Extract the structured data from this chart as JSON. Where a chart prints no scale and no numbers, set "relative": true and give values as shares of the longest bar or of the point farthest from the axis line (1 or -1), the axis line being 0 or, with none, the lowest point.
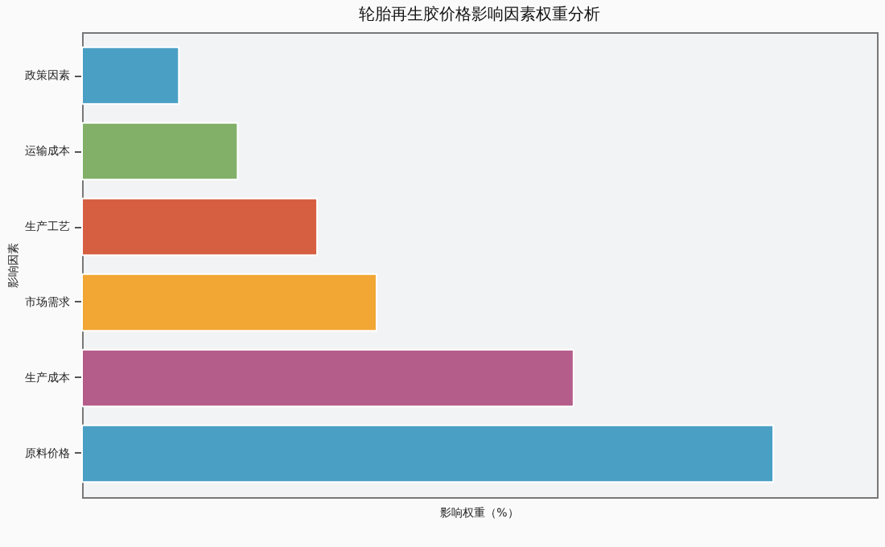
{
  "chart_data": {
    "type": "bar",
    "orientation": "horizontal",
    "relative": true,
    "title": "轮胎再生胶价格影响因素权重分析",
    "xlabel": "影响权重（%）",
    "ylabel": "影响因素",
    "categories": [
      "政策因素",
      "运输成本",
      "生产工艺",
      "市场需求",
      "生产成本",
      "原料价格"
    ],
    "values": [
      0.14,
      0.225,
      0.34,
      0.426,
      0.711,
      1
    ],
    "colors": [
      "#4a9fc4",
      "#82b068",
      "#d65f42",
      "#f2a634",
      "#b45c8a",
      "#4a9fc4"
    ],
    "legend": false
  }
}
